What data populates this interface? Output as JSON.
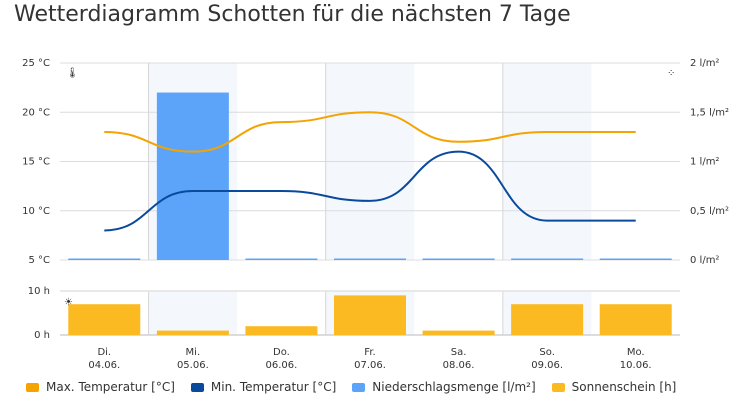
{
  "title": "Wetterdiagramm Schotten für die nächsten 7 Tage",
  "colors": {
    "max": "#f5a300",
    "min": "#0a4a9c",
    "precip": "#5ba4fa",
    "sun": "#fbba22",
    "band": "#f4f8fd"
  },
  "chart_data": [
    {
      "type": "line",
      "categories": [
        "Di. 04.06.",
        "Mi. 05.06.",
        "Do. 06.06.",
        "Fr. 07.06.",
        "Sa. 08.06.",
        "So. 09.06.",
        "Mo. 10.06."
      ],
      "series": [
        {
          "name": "Max. Temperatur [°C]",
          "type": "line",
          "axis": "left",
          "values": [
            18,
            16,
            19,
            20,
            17,
            18,
            18
          ]
        },
        {
          "name": "Min. Temperatur [°C]",
          "type": "line",
          "axis": "left",
          "values": [
            8,
            12,
            12,
            11,
            16,
            9,
            9
          ]
        },
        {
          "name": "Niederschlagsmenge [l/m²]",
          "type": "bar",
          "axis": "right",
          "values": [
            0,
            1.7,
            0,
            0,
            0,
            0,
            0
          ]
        }
      ],
      "y_left": {
        "ylim": [
          5,
          25
        ],
        "ticks": [
          "5 °C",
          "10 °C",
          "15 °C",
          "20 °C",
          "25 °C"
        ]
      },
      "y_right": {
        "ylim": [
          0,
          2
        ],
        "ticks": [
          "0 l/m²",
          "0,5 l/m²",
          "1 l/m²",
          "1,5 l/m²",
          "2 l/m²"
        ]
      }
    },
    {
      "type": "bar",
      "series": [
        {
          "name": "Sonnenschein [h]",
          "values": [
            7,
            1,
            2,
            9,
            1,
            7,
            7
          ]
        }
      ],
      "ylim": [
        0,
        10
      ],
      "ticks": [
        "0 h",
        "10 h"
      ]
    }
  ],
  "days": [
    {
      "name": "Di.",
      "date": "04.06."
    },
    {
      "name": "Mi.",
      "date": "05.06."
    },
    {
      "name": "Do.",
      "date": "06.06."
    },
    {
      "name": "Fr.",
      "date": "07.06."
    },
    {
      "name": "Sa.",
      "date": "08.06."
    },
    {
      "name": "So.",
      "date": "09.06."
    },
    {
      "name": "Mo.",
      "date": "10.06."
    }
  ],
  "legend": [
    "Max. Temperatur [°C]",
    "Min. Temperatur [°C]",
    "Niederschlagsmenge [l/m²]",
    "Sonnenschein [h]"
  ]
}
